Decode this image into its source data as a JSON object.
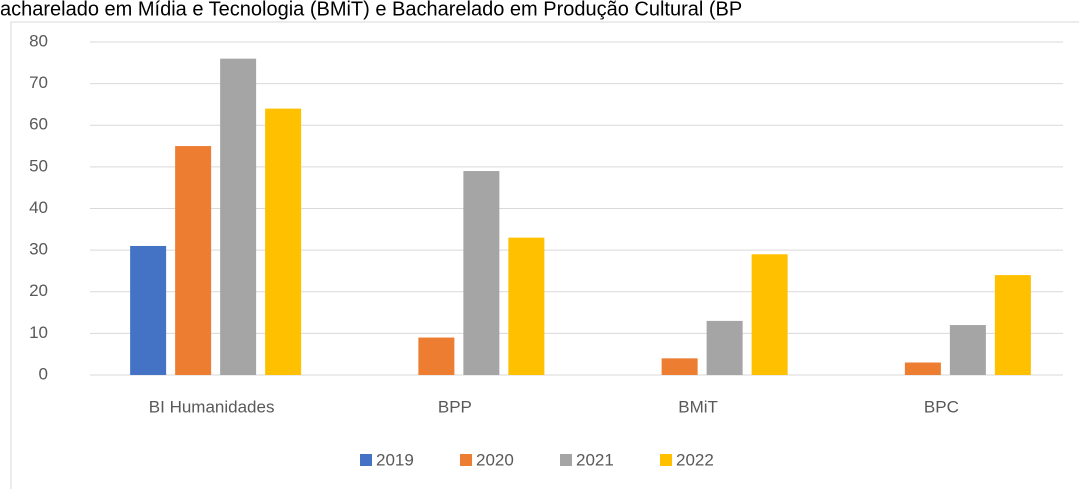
{
  "chart_data": {
    "type": "bar",
    "title": "acharelado em Mídia e Tecnologia (BMiT) e Bacharelado em Produção Cultural (BP",
    "categories": [
      "BI Humanidades",
      "BPP",
      "BMiT",
      "BPC"
    ],
    "series": [
      {
        "name": "2019",
        "color": "#4472c4",
        "values": [
          31,
          null,
          null,
          null
        ]
      },
      {
        "name": "2020",
        "color": "#ed7d31",
        "values": [
          55,
          9,
          4,
          3
        ]
      },
      {
        "name": "2021",
        "color": "#a5a5a5",
        "values": [
          76,
          49,
          13,
          12
        ]
      },
      {
        "name": "2022",
        "color": "#ffc000",
        "values": [
          64,
          33,
          29,
          24
        ]
      }
    ],
    "ylim": [
      0,
      80
    ],
    "yticks": [
      0,
      10,
      20,
      30,
      40,
      50,
      60,
      70,
      80
    ],
    "grid": true,
    "legend": "bottom"
  }
}
